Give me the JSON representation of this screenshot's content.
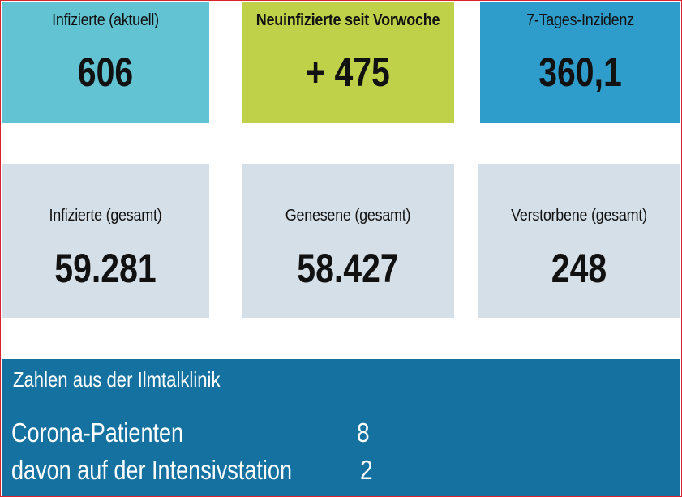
{
  "tiles": {
    "infizierte_aktuell": {
      "label": "Infizierte (aktuell)",
      "value": "606"
    },
    "neuinfizierte": {
      "label": "Neuinfizierte seit Vorwoche",
      "value": "+ 475"
    },
    "inzidenz": {
      "label": "7-Tages-Inzidenz",
      "value": "360,1"
    },
    "infizierte_gesamt": {
      "label": "Infizierte (gesamt)",
      "value": "59.281"
    },
    "genesene_gesamt": {
      "label": "Genesene (gesamt)",
      "value": "58.427"
    },
    "verstorbene_gesamt": {
      "label": "Verstorbene (gesamt)",
      "value": "248"
    }
  },
  "klinik": {
    "title": "Zahlen aus der Ilmtalklinik",
    "rows": [
      {
        "label": "Corona-Patienten",
        "value": "8"
      },
      {
        "label": "davon auf der Intensivstation",
        "value": "2"
      }
    ]
  },
  "colors": {
    "tile_cyan": "#62c3d3",
    "tile_lime": "#bfd148",
    "tile_blue": "#2f9dcc",
    "tile_grey": "#d4dfe8",
    "klinik_blue": "#1471a0",
    "frame_red": "#d9232e"
  }
}
